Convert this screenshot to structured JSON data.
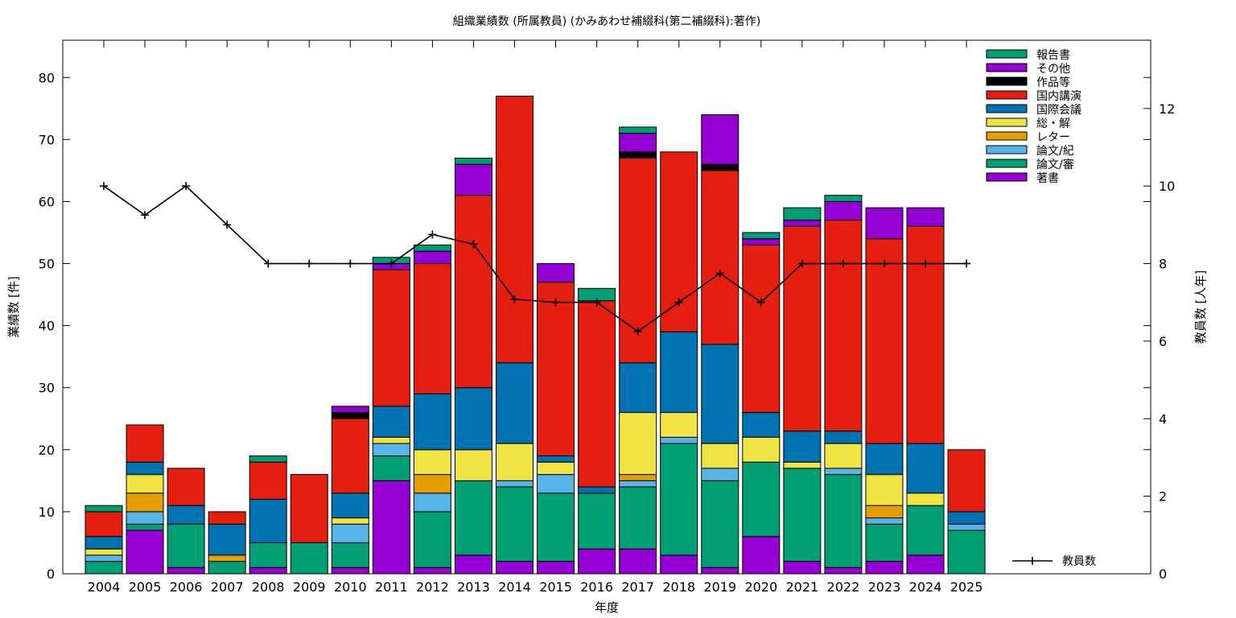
{
  "chart_data": {
    "type": "bar",
    "stacked": true,
    "title": "組織業績数 (所属教員) (かみあわせ補綴科(第二補綴科):著作)",
    "xlabel": "年度",
    "ylabel": "業績数 [件]",
    "y2label": "教員数 [人年]",
    "ylim": [
      0,
      86
    ],
    "y2lim": [
      0,
      13.76
    ],
    "yticks": [
      0,
      10,
      20,
      30,
      40,
      50,
      60,
      70,
      80
    ],
    "y2ticks": [
      0,
      2,
      4,
      6,
      8,
      10,
      12
    ],
    "legend_position": "top-right",
    "categories": [
      "2004",
      "2005",
      "2006",
      "2007",
      "2008",
      "2009",
      "2010",
      "2011",
      "2012",
      "2013",
      "2014",
      "2015",
      "2016",
      "2017",
      "2018",
      "2019",
      "2020",
      "2021",
      "2022",
      "2023",
      "2024",
      "2025"
    ],
    "series": [
      {
        "name": "著書",
        "color": "#9400d3",
        "values": [
          0,
          7,
          1,
          0,
          1,
          0,
          1,
          15,
          1,
          3,
          2,
          2,
          4,
          4,
          3,
          1,
          6,
          2,
          1,
          2,
          3,
          0
        ]
      },
      {
        "name": "論文/審",
        "color": "#009e73",
        "values": [
          2,
          1,
          7,
          2,
          4,
          5,
          4,
          4,
          9,
          12,
          12,
          11,
          9,
          10,
          18,
          14,
          12,
          15,
          15,
          6,
          8,
          7
        ]
      },
      {
        "name": "論文/紀",
        "color": "#56b4e9",
        "values": [
          1,
          2,
          0,
          0,
          0,
          0,
          3,
          2,
          3,
          0,
          1,
          3,
          0,
          1,
          1,
          2,
          0,
          0,
          1,
          1,
          0,
          1
        ]
      },
      {
        "name": "レター",
        "color": "#e69f00",
        "values": [
          0,
          3,
          0,
          1,
          0,
          0,
          0,
          0,
          3,
          0,
          0,
          0,
          0,
          1,
          0,
          0,
          0,
          0,
          0,
          2,
          0,
          0
        ]
      },
      {
        "name": "総・解",
        "color": "#f0e442",
        "values": [
          1,
          3,
          0,
          0,
          0,
          0,
          1,
          1,
          4,
          5,
          6,
          2,
          0,
          10,
          4,
          4,
          4,
          1,
          4,
          5,
          2,
          0
        ]
      },
      {
        "name": "国際会議",
        "color": "#0072b2",
        "values": [
          2,
          2,
          3,
          5,
          7,
          0,
          4,
          5,
          9,
          10,
          13,
          1,
          1,
          8,
          13,
          16,
          4,
          5,
          2,
          5,
          8,
          2
        ]
      },
      {
        "name": "国内講演",
        "color": "#e51e10",
        "values": [
          4,
          6,
          6,
          2,
          6,
          11,
          12,
          22,
          21,
          31,
          43,
          28,
          30,
          33,
          29,
          28,
          27,
          33,
          34,
          33,
          35,
          10
        ]
      },
      {
        "name": "作品等",
        "color": "#000000",
        "values": [
          0,
          0,
          0,
          0,
          0,
          0,
          1,
          0,
          0,
          0,
          0,
          0,
          0,
          1,
          0,
          1,
          0,
          0,
          0,
          0,
          0,
          0
        ]
      },
      {
        "name": "その他",
        "color": "#9400d3",
        "values": [
          0,
          0,
          0,
          0,
          0,
          0,
          1,
          1,
          2,
          5,
          0,
          3,
          0,
          3,
          0,
          8,
          1,
          1,
          3,
          5,
          3,
          0
        ]
      },
      {
        "name": "報告書",
        "color": "#009e73",
        "values": [
          1,
          0,
          0,
          0,
          1,
          0,
          0,
          1,
          1,
          1,
          0,
          0,
          2,
          1,
          0,
          0,
          1,
          2,
          1,
          0,
          0,
          0
        ]
      }
    ],
    "line_series": {
      "name": "教員数",
      "axis": "y2",
      "x": [
        "2004",
        "2005",
        "2006",
        "2007",
        "2008",
        "2009",
        "2010",
        "2011",
        "2012",
        "2013",
        "2014",
        "2015",
        "2016",
        "2017",
        "2018",
        "2019",
        "2020",
        "2021",
        "2022",
        "2023",
        "2024",
        "2025"
      ],
      "values": [
        10,
        9.25,
        10,
        9,
        8,
        8,
        8,
        8,
        8.75,
        8.5,
        7.08,
        7,
        7,
        6.25,
        7,
        7.75,
        7,
        8,
        8,
        8,
        8,
        8
      ]
    }
  }
}
